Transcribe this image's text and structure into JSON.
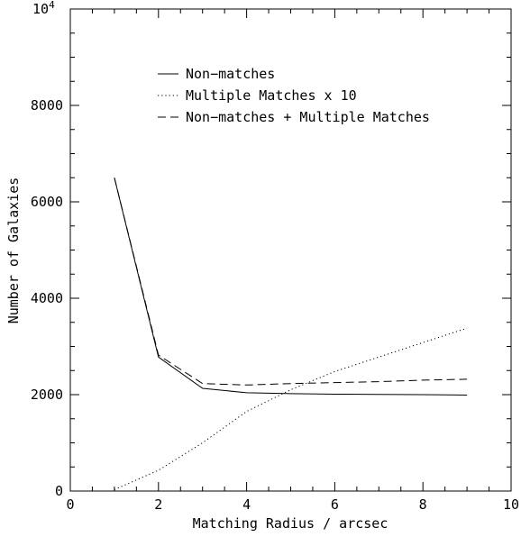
{
  "chart_data": {
    "type": "line",
    "title": "",
    "xlabel": "Matching Radius / arcsec",
    "ylabel": "Number of Galaxies",
    "xlim": [
      0,
      10
    ],
    "ylim": [
      0,
      10000
    ],
    "xticks": [
      0,
      2,
      4,
      6,
      8,
      10
    ],
    "xtick_labels": [
      "0",
      "2",
      "4",
      "6",
      "8",
      "10"
    ],
    "yticks": [
      0,
      2000,
      4000,
      6000,
      8000
    ],
    "ytick_labels": [
      "0",
      "2000",
      "4000",
      "6000",
      "8000"
    ],
    "ytop_label_base": "10",
    "ytop_label_exp": "4",
    "grid": false,
    "legend_position": "top-center",
    "series": [
      {
        "name": "Non−matches",
        "style": "solid",
        "x": [
          1,
          2,
          3,
          4,
          5,
          6,
          7,
          8,
          9
        ],
        "y": [
          6500,
          2780,
          2130,
          2040,
          2020,
          2010,
          2005,
          2000,
          1990
        ]
      },
      {
        "name": "Multiple Matches x 10",
        "style": "dotted",
        "x": [
          1,
          2,
          3,
          4,
          5,
          6,
          7,
          8,
          9
        ],
        "y": [
          30,
          430,
          1000,
          1650,
          2100,
          2480,
          2780,
          3080,
          3380
        ]
      },
      {
        "name": "Non−matches + Multiple Matches",
        "style": "dashed",
        "x": [
          1,
          2,
          3,
          4,
          5,
          6,
          7,
          8,
          9
        ],
        "y": [
          6500,
          2820,
          2230,
          2200,
          2230,
          2250,
          2270,
          2300,
          2320
        ]
      }
    ]
  }
}
